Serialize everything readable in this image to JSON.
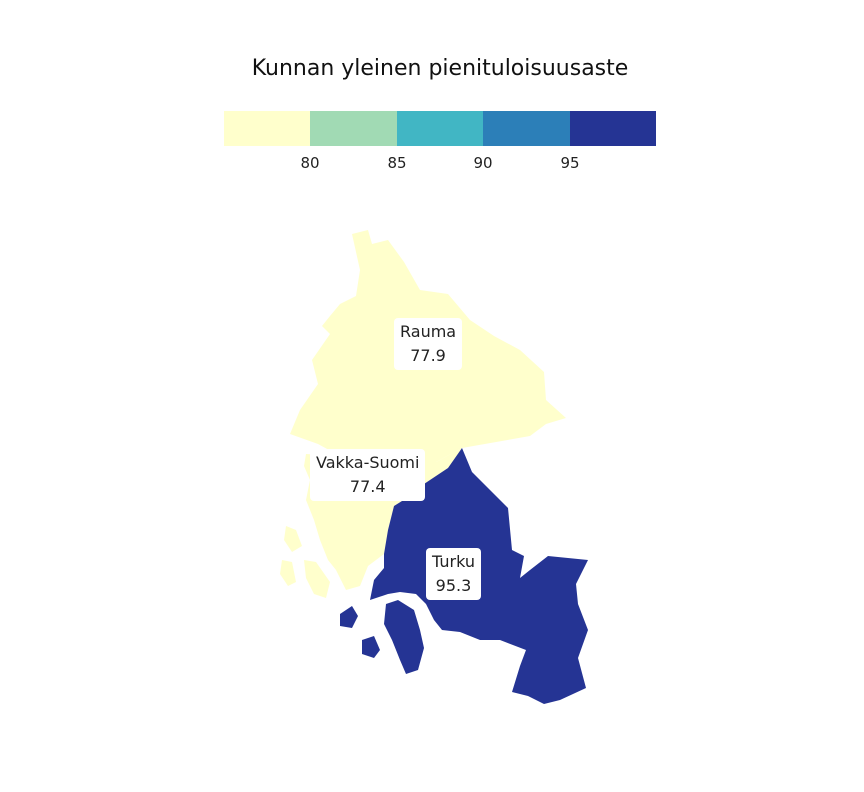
{
  "legend": {
    "title": "Kunnan yleinen pienituloisuusaste",
    "colors": [
      "#ffffcc",
      "#a1dab4",
      "#41b6c4",
      "#2c7fb8",
      "#253494"
    ],
    "ticks": [
      "80",
      "85",
      "90",
      "95"
    ]
  },
  "regions": [
    {
      "name": "Rauma",
      "value": "77.9",
      "color": "#ffffcc"
    },
    {
      "name": "Vakka-Suomi",
      "value": "77.4",
      "color": "#ffffcc"
    },
    {
      "name": "Turku",
      "value": "95.3",
      "color": "#253494"
    }
  ]
}
